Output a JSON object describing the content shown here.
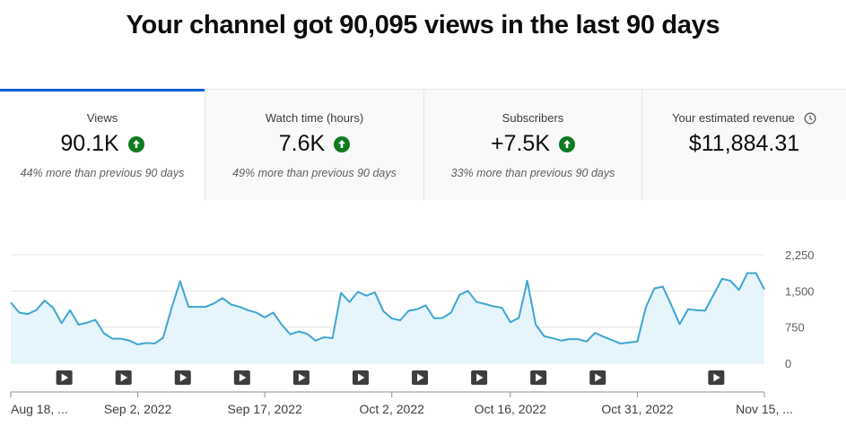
{
  "header": {
    "title": "Your channel got 90,095 views in the last 90 days"
  },
  "tabs": [
    {
      "title": "Views",
      "value": "90.1K",
      "comparison": "44% more than previous 90 days",
      "trend": "up"
    },
    {
      "title": "Watch time (hours)",
      "value": "7.6K",
      "comparison": "49% more than previous 90 days",
      "trend": "up"
    },
    {
      "title": "Subscribers",
      "value": "+7.5K",
      "comparison": "33% more than previous 90 days",
      "trend": "up"
    },
    {
      "title": "Your estimated revenue",
      "value": "$11,884.31",
      "comparison": "",
      "trend": "",
      "icon": "clock-icon"
    }
  ],
  "colors": {
    "accent": "#065fd4",
    "line": "#3ea6d1",
    "fill": "#e6f4fb",
    "trend_up": "#0f7b21"
  },
  "chart_data": {
    "type": "area",
    "y_ticks": [
      "2,250",
      "1,500",
      "750",
      "0"
    ],
    "y_tick_values": [
      2250,
      1500,
      750,
      0
    ],
    "ylim": [
      0,
      2250
    ],
    "x_ticks": [
      "Aug 18, ...",
      "Sep 2, 2022",
      "Sep 17, 2022",
      "Oct 2, 2022",
      "Oct 16, 2022",
      "Oct 31, 2022",
      "Nov 15, ..."
    ],
    "x_tick_day_index": [
      0,
      15,
      30,
      45,
      59,
      74,
      89
    ],
    "series": [
      {
        "values": [
          1260,
          1050,
          1020,
          1100,
          1300,
          1150,
          830,
          1100,
          800,
          840,
          900,
          620,
          510,
          510,
          470,
          390,
          420,
          410,
          530,
          1150,
          1700,
          1170,
          1170,
          1170,
          1240,
          1350,
          1220,
          1170,
          1100,
          1050,
          950,
          1050,
          800,
          600,
          660,
          610,
          470,
          540,
          520,
          1460,
          1270,
          1480,
          1400,
          1470,
          1080,
          930,
          890,
          1090,
          1120,
          1200,
          930,
          940,
          1050,
          1420,
          1500,
          1270,
          1230,
          1180,
          1150,
          850,
          940,
          1710,
          800,
          560,
          520,
          470,
          500,
          500,
          450,
          630,
          550,
          480,
          410,
          430,
          450,
          1160,
          1550,
          1590,
          1210,
          810,
          1120,
          1100,
          1090,
          1420,
          1750,
          1710,
          1520,
          1870,
          1870,
          1530
        ]
      }
    ],
    "video_markers_day_index": [
      6,
      13,
      20,
      27,
      34,
      41,
      48,
      55,
      62,
      69,
      83
    ]
  }
}
